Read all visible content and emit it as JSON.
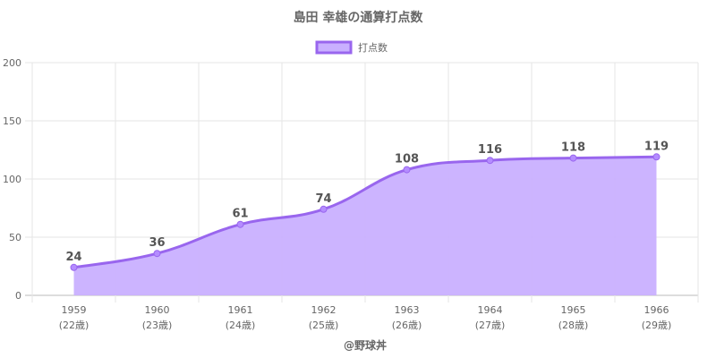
{
  "chart_data": {
    "type": "area",
    "title": "島田 幸雄の通算打点数",
    "legend": {
      "label": "打点数",
      "position": "top"
    },
    "categories": [
      "1959",
      "1960",
      "1961",
      "1962",
      "1963",
      "1964",
      "1965",
      "1966"
    ],
    "sub_labels": [
      "(22歳)",
      "(23歳)",
      "(24歳)",
      "(25歳)",
      "(26歳)",
      "(27歳)",
      "(28歳)",
      "(29歳)"
    ],
    "series": [
      {
        "name": "打点数",
        "values": [
          24,
          36,
          61,
          74,
          108,
          116,
          118,
          119
        ]
      }
    ],
    "y_ticks": [
      0,
      50,
      100,
      150,
      200
    ],
    "ylim": [
      0,
      200
    ],
    "grid": true,
    "colors": {
      "line": "#9966ee",
      "fill": "#c9b0ff",
      "point": "#b48cff"
    }
  },
  "credit": "@野球丼"
}
